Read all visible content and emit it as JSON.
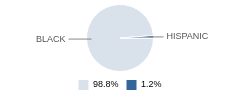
{
  "chart_data": {
    "type": "pie",
    "categories": [
      "BLACK",
      "HISPANIC"
    ],
    "values": [
      98.8,
      1.2
    ],
    "value_labels": [
      "98.8%",
      "1.2%"
    ],
    "colors": [
      "#d9e1ea",
      "#336699"
    ],
    "legend": "bottom"
  }
}
